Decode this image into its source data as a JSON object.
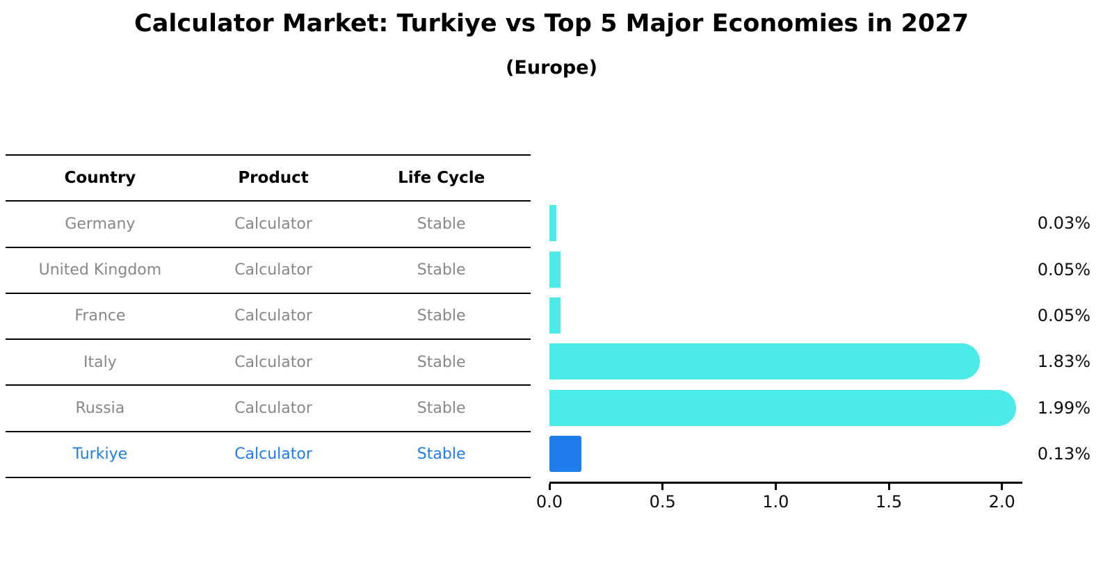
{
  "title": "Calculator Market: Turkiye vs Top 5 Major Economies in 2027",
  "subtitle": "(Europe)",
  "table": {
    "headers": {
      "country": "Country",
      "product": "Product",
      "life_cycle": "Life Cycle"
    },
    "rows": [
      {
        "country": "Germany",
        "product": "Calculator",
        "life_cycle": "Stable",
        "highlight": false
      },
      {
        "country": "United Kingdom",
        "product": "Calculator",
        "life_cycle": "Stable",
        "highlight": false
      },
      {
        "country": "France",
        "product": "Calculator",
        "life_cycle": "Stable",
        "highlight": false
      },
      {
        "country": "Italy",
        "product": "Calculator",
        "life_cycle": "Stable",
        "highlight": false
      },
      {
        "country": "Russia",
        "product": "Calculator",
        "life_cycle": "Stable",
        "highlight": false
      },
      {
        "country": "Turkiye",
        "product": "Calculator",
        "life_cycle": "Stable",
        "highlight": true
      }
    ]
  },
  "chart_data": {
    "type": "bar",
    "orientation": "horizontal",
    "title": "Calculator Market: Turkiye vs Top 5 Major Economies in 2027",
    "subtitle": "(Europe)",
    "categories": [
      "Germany",
      "United Kingdom",
      "France",
      "Italy",
      "Russia",
      "Turkiye"
    ],
    "values": [
      0.03,
      0.05,
      0.05,
      1.83,
      1.99,
      0.13
    ],
    "value_labels": [
      "0.03%",
      "0.05%",
      "0.05%",
      "1.83%",
      "1.99%",
      "0.13%"
    ],
    "unit": "%",
    "xlim": [
      0,
      2.09
    ],
    "x_tick_values": [
      0.0,
      0.5,
      1.0,
      1.5,
      2.0
    ],
    "x_tick_labels": [
      "0.0",
      "0.5",
      "1.0",
      "1.5",
      "2.0"
    ],
    "grid": false,
    "legend": false,
    "bar_color": "#4BEBE8",
    "highlight_bar_color": "#1E7DEB",
    "highlight_border_style": "dashed",
    "highlight_index": 5
  },
  "colors": {
    "background": "#ffffff",
    "bar_cyan": "#4BEBE8",
    "bar_blue": "#1E7DEB",
    "table_text_gray": "#878787",
    "highlight_text_blue": "#1E7DEB",
    "line_black": "#000000"
  }
}
